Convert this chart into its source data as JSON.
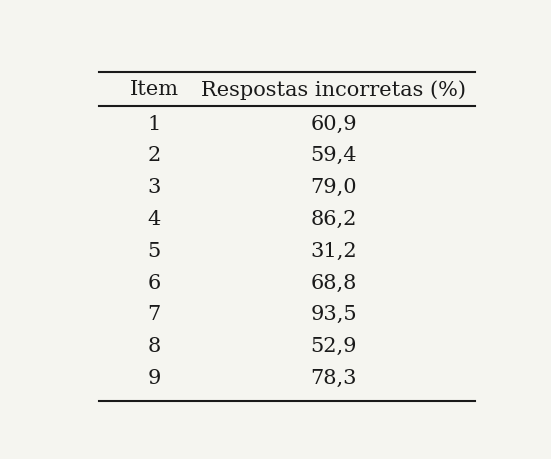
{
  "col1_header": "Item",
  "col2_header": "Respostas incorretas (%)",
  "items": [
    "1",
    "2",
    "3",
    "4",
    "5",
    "6",
    "7",
    "8",
    "9"
  ],
  "values": [
    "60,9",
    "59,4",
    "79,0",
    "86,2",
    "31,2",
    "68,8",
    "93,5",
    "52,9",
    "78,3"
  ],
  "background_color": "#f5f5f0",
  "text_color": "#1a1a1a",
  "font_size": 15,
  "header_font_size": 15,
  "figsize": [
    5.51,
    4.6
  ],
  "dpi": 100
}
